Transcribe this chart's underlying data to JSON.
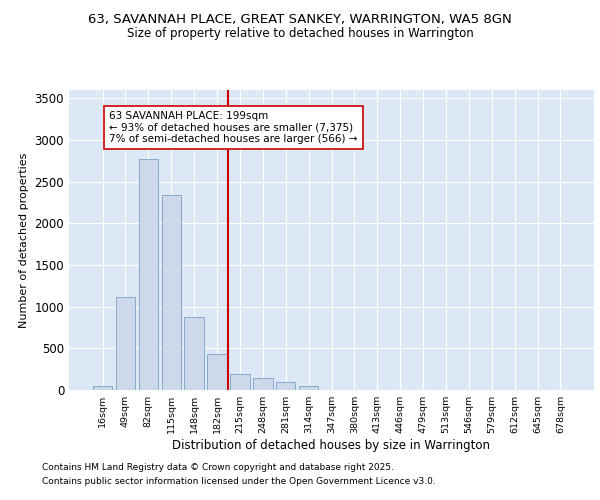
{
  "title1": "63, SAVANNAH PLACE, GREAT SANKEY, WARRINGTON, WA5 8GN",
  "title2": "Size of property relative to detached houses in Warrington",
  "xlabel": "Distribution of detached houses by size in Warrington",
  "ylabel": "Number of detached properties",
  "categories": [
    "16sqm",
    "49sqm",
    "82sqm",
    "115sqm",
    "148sqm",
    "182sqm",
    "215sqm",
    "248sqm",
    "281sqm",
    "314sqm",
    "347sqm",
    "380sqm",
    "413sqm",
    "446sqm",
    "479sqm",
    "513sqm",
    "546sqm",
    "579sqm",
    "612sqm",
    "645sqm",
    "678sqm"
  ],
  "values": [
    50,
    1120,
    2770,
    2340,
    880,
    430,
    195,
    140,
    95,
    50,
    0,
    0,
    0,
    0,
    0,
    0,
    0,
    0,
    0,
    0,
    0
  ],
  "bar_color": "#cdd9ea",
  "bar_edge_color": "#85a9cc",
  "vline_color": "#cc0000",
  "annotation_text": "63 SAVANNAH PLACE: 199sqm\n← 93% of detached houses are smaller (7,375)\n7% of semi-detached houses are larger (566) →",
  "annotation_box_color": "white",
  "annotation_box_edge": "#cc0000",
  "ylim": [
    0,
    3600
  ],
  "yticks": [
    0,
    500,
    1000,
    1500,
    2000,
    2500,
    3000,
    3500
  ],
  "background_color": "#dce8f5",
  "plot_bg_color": "#dce8f5",
  "grid_color": "white",
  "footer1": "Contains HM Land Registry data © Crown copyright and database right 2025.",
  "footer2": "Contains public sector information licensed under the Open Government Licence v3.0."
}
